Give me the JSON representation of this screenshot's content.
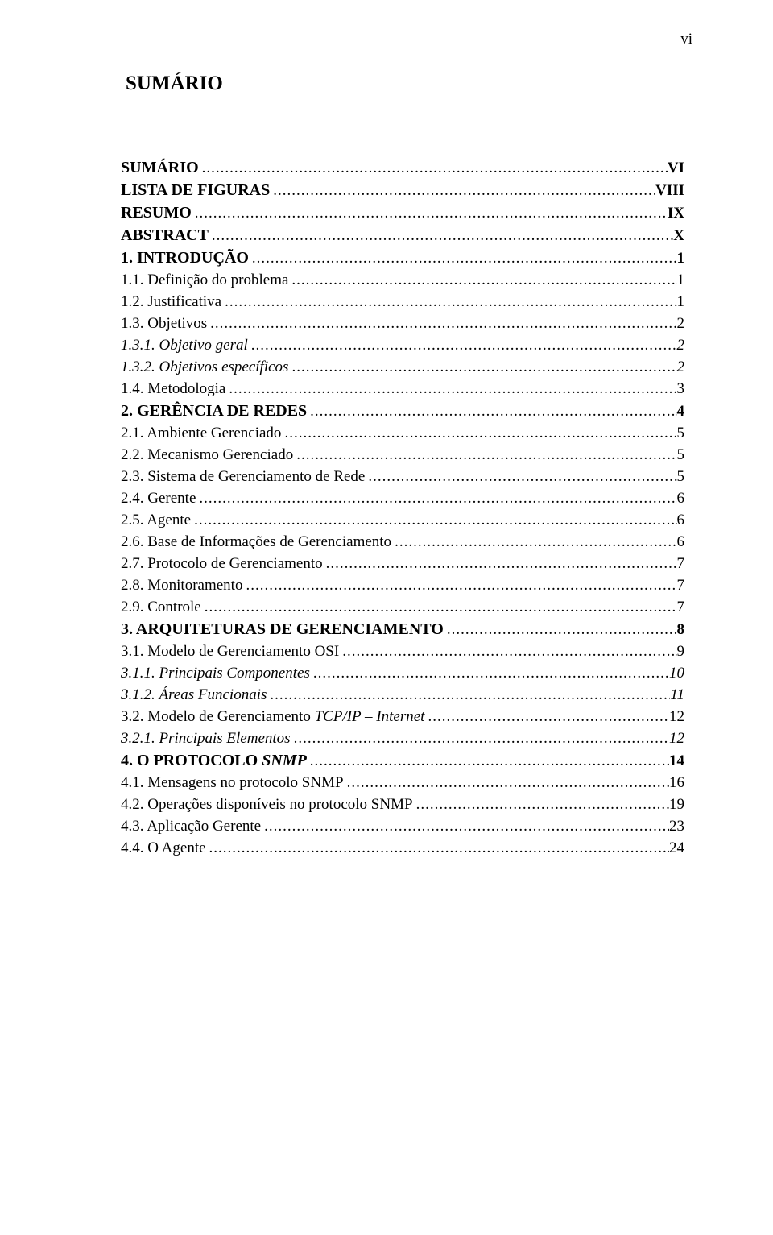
{
  "page_number_label": "vi",
  "title": "SUMÁRIO",
  "text_color": "#000000",
  "background_color": "#ffffff",
  "font_family": "Times New Roman",
  "entries": [
    {
      "label": "SUMÁRIO",
      "page": "VI",
      "bold": true,
      "smallcaps": false,
      "italic": false,
      "kind": "chapter-head"
    },
    {
      "label": "LISTA DE FIGURAS",
      "page": "VIII",
      "bold": true,
      "smallcaps": false,
      "italic": false,
      "kind": "chapter-head"
    },
    {
      "label": "RESUMO",
      "page": "IX",
      "bold": true,
      "smallcaps": false,
      "italic": false,
      "kind": "chapter-head"
    },
    {
      "label": "ABSTRACT",
      "page": "X",
      "bold": true,
      "smallcaps": false,
      "italic": false,
      "kind": "chapter-head"
    },
    {
      "label": "1. INTRODUÇÃO",
      "page": "1",
      "bold": true,
      "smallcaps": true,
      "italic": false,
      "kind": "section-head"
    },
    {
      "label": "1.1. Definição do problema",
      "page": "1",
      "bold": false,
      "smallcaps": false,
      "italic": false,
      "kind": "body"
    },
    {
      "label": "1.2. Justificativa",
      "page": "1",
      "bold": false,
      "smallcaps": false,
      "italic": false,
      "kind": "body"
    },
    {
      "label": "1.3. Objetivos",
      "page": "2",
      "bold": false,
      "smallcaps": false,
      "italic": false,
      "kind": "body"
    },
    {
      "label": "1.3.1. Objetivo geral",
      "page": "2",
      "bold": false,
      "smallcaps": false,
      "italic": true,
      "kind": "body"
    },
    {
      "label": "1.3.2. Objetivos específicos",
      "page": "2",
      "bold": false,
      "smallcaps": false,
      "italic": true,
      "kind": "body"
    },
    {
      "label": "1.4. Metodologia",
      "page": "3",
      "bold": false,
      "smallcaps": false,
      "italic": false,
      "kind": "body"
    },
    {
      "label": "2. GERÊNCIA DE REDES",
      "page": "4",
      "bold": true,
      "smallcaps": true,
      "italic": false,
      "kind": "section-head"
    },
    {
      "label": "2.1. Ambiente Gerenciado",
      "page": "5",
      "bold": false,
      "smallcaps": false,
      "italic": false,
      "kind": "body"
    },
    {
      "label": "2.2. Mecanismo Gerenciado",
      "page": "5",
      "bold": false,
      "smallcaps": false,
      "italic": false,
      "kind": "body"
    },
    {
      "label": "2.3. Sistema de Gerenciamento de Rede",
      "page": "5",
      "bold": false,
      "smallcaps": false,
      "italic": false,
      "kind": "body"
    },
    {
      "label": "2.4. Gerente",
      "page": "6",
      "bold": false,
      "smallcaps": false,
      "italic": false,
      "kind": "body"
    },
    {
      "label": "2.5. Agente",
      "page": "6",
      "bold": false,
      "smallcaps": false,
      "italic": false,
      "kind": "body"
    },
    {
      "label": "2.6. Base de Informações de Gerenciamento",
      "page": "6",
      "bold": false,
      "smallcaps": false,
      "italic": false,
      "kind": "body"
    },
    {
      "label": "2.7. Protocolo de Gerenciamento",
      "page": "7",
      "bold": false,
      "smallcaps": false,
      "italic": false,
      "kind": "body"
    },
    {
      "label": "2.8. Monitoramento",
      "page": "7",
      "bold": false,
      "smallcaps": false,
      "italic": false,
      "kind": "body"
    },
    {
      "label": "2.9. Controle",
      "page": "7",
      "bold": false,
      "smallcaps": false,
      "italic": false,
      "kind": "body"
    },
    {
      "label": "3. ARQUITETURAS DE GERENCIAMENTO",
      "page": "8",
      "bold": true,
      "smallcaps": true,
      "italic": false,
      "kind": "section-head"
    },
    {
      "label": "3.1. Modelo de Gerenciamento OSI",
      "page": "9",
      "bold": false,
      "smallcaps": false,
      "italic": false,
      "kind": "body"
    },
    {
      "label": "3.1.1. Principais Componentes",
      "page": "10",
      "bold": false,
      "smallcaps": false,
      "italic": true,
      "kind": "body"
    },
    {
      "label": "3.1.2. Áreas Funcionais",
      "page": "11",
      "bold": false,
      "smallcaps": false,
      "italic": true,
      "kind": "body"
    },
    {
      "label_prefix": "3.2. Modelo de Gerenciamento ",
      "label_italic_run": "TCP/IP – Internet",
      "page": "12",
      "bold": false,
      "smallcaps": false,
      "italic": false,
      "kind": "body",
      "mixed": true
    },
    {
      "label": "3.2.1. Principais Elementos",
      "page": "12",
      "bold": false,
      "smallcaps": false,
      "italic": true,
      "kind": "body"
    },
    {
      "label_prefix": "4. O PROTOCOLO ",
      "label_italic_run": "SNMP",
      "page": "14",
      "bold": true,
      "smallcaps": true,
      "italic": false,
      "kind": "section-head",
      "mixed": true
    },
    {
      "label": "4.1. Mensagens no protocolo SNMP",
      "page": "16",
      "bold": false,
      "smallcaps": false,
      "italic": false,
      "kind": "body"
    },
    {
      "label": "4.2. Operações disponíveis no protocolo SNMP",
      "page": "19",
      "bold": false,
      "smallcaps": false,
      "italic": false,
      "kind": "body"
    },
    {
      "label": "4.3. Aplicação Gerente",
      "page": "23",
      "bold": false,
      "smallcaps": false,
      "italic": false,
      "kind": "body"
    },
    {
      "label": "4.4. O Agente",
      "page": "24",
      "bold": false,
      "smallcaps": false,
      "italic": false,
      "kind": "body"
    }
  ]
}
